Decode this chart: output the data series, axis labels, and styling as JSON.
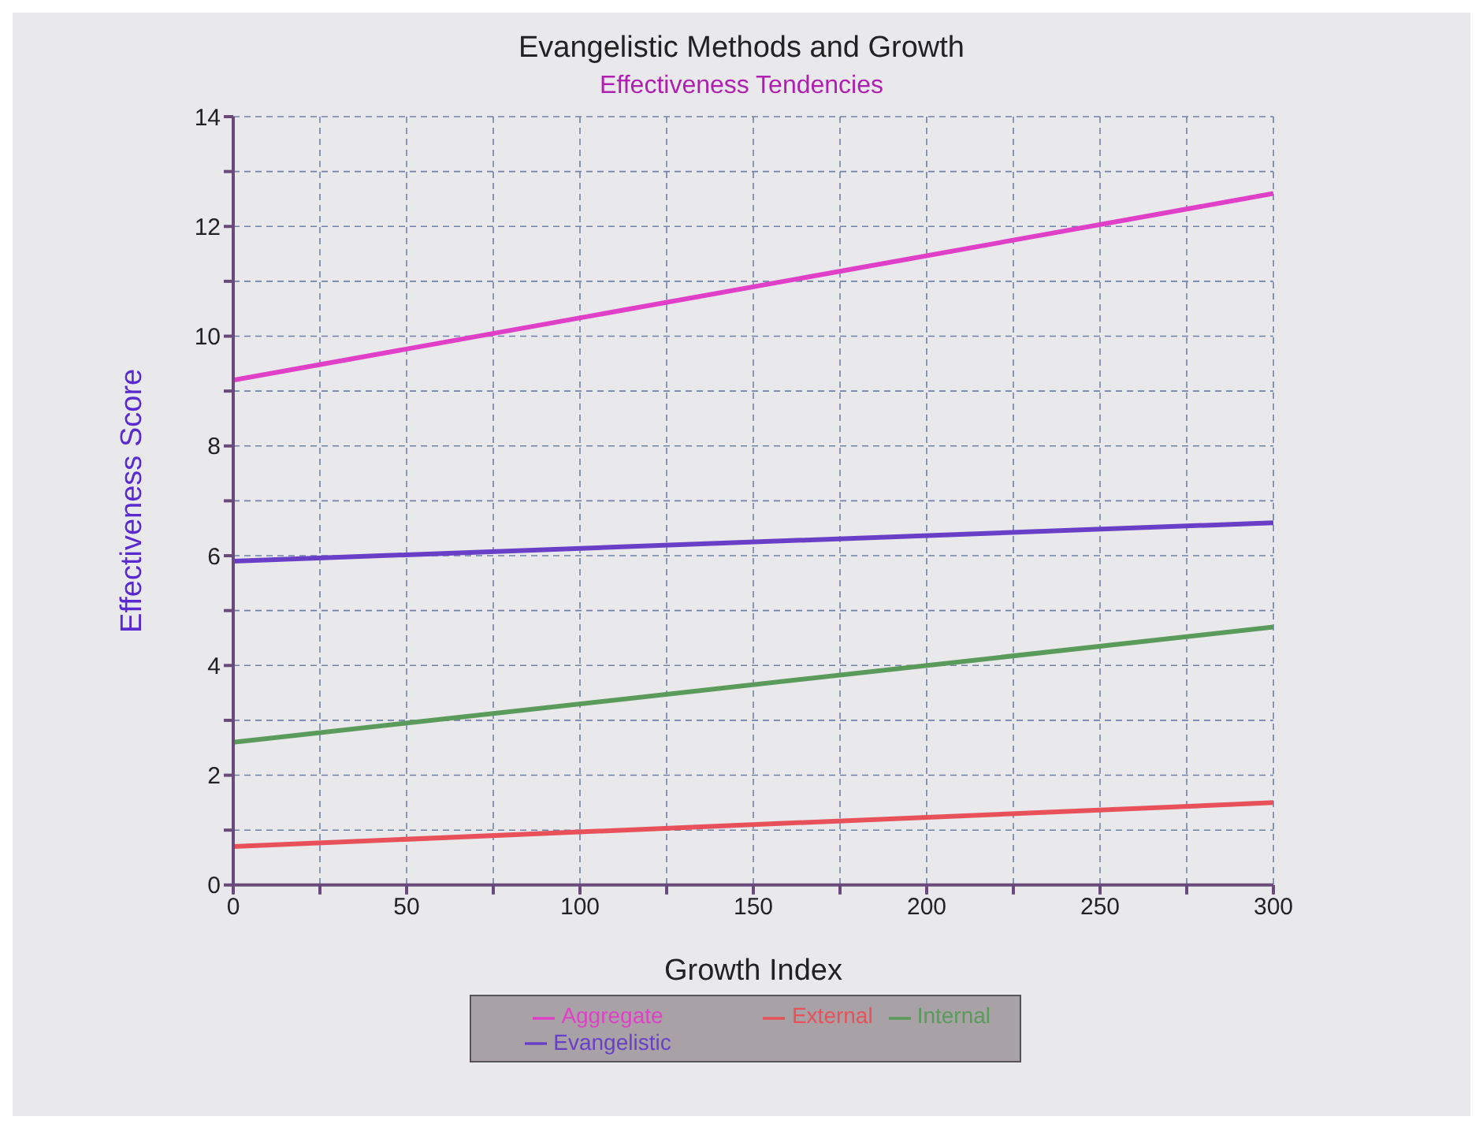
{
  "chart_data": {
    "type": "line",
    "title": "Evangelistic Methods and Growth",
    "subtitle": "Effectiveness Tendencies",
    "xlabel": "Growth Index",
    "ylabel": "Effectiveness Score",
    "x": [
      0,
      300
    ],
    "series": [
      {
        "name": "External",
        "color": "#e8505a",
        "values": [
          0.7,
          1.5
        ]
      },
      {
        "name": "Evangelistic",
        "color": "#6a3fc8",
        "values": [
          5.9,
          6.6
        ]
      },
      {
        "name": "Internal",
        "color": "#5a9a5a",
        "values": [
          2.6,
          4.7
        ]
      },
      {
        "name": "Aggregate",
        "color": "#e040c8",
        "values": [
          9.2,
          12.6
        ]
      }
    ],
    "xlim": [
      0,
      300
    ],
    "xticks": [
      0,
      {
        "value": 25,
        "label": null
      },
      50,
      {
        "value": 75,
        "label": null
      },
      100,
      {
        "value": 125,
        "label": null
      },
      150,
      {
        "value": 175,
        "label": null
      },
      200,
      {
        "value": 225,
        "label": null
      },
      250,
      {
        "value": 275,
        "label": null
      },
      300
    ],
    "ylim": [
      0,
      14
    ],
    "yticks": [
      0,
      {
        "value": 1,
        "label": null
      },
      2,
      {
        "value": 3,
        "label": null
      },
      4,
      {
        "value": 5,
        "label": null
      },
      6,
      {
        "value": 7,
        "label": null
      },
      8,
      {
        "value": 9,
        "label": null
      },
      10,
      {
        "value": 11,
        "label": null
      },
      12,
      {
        "value": 13,
        "label": null
      },
      14
    ],
    "grid": true,
    "legend": "bottom",
    "marker": "none",
    "line_style": "solid"
  }
}
